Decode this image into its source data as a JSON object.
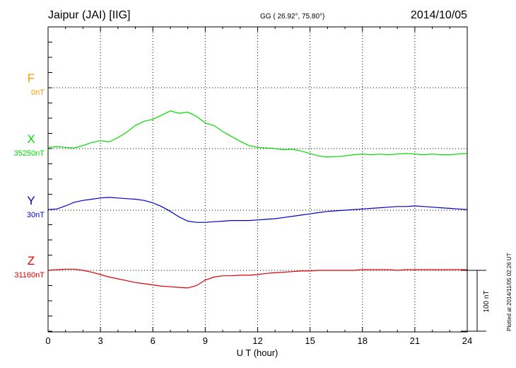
{
  "header": {
    "station": "Jaipur (JAI)  [IIG]",
    "coords": "GG ( 26.92°,  75.80°)",
    "date": "2014/10/05"
  },
  "plotted_note": "Plotted at 2014/11/05 02:26 UT",
  "chart_data": {
    "type": "line",
    "title": "",
    "xlabel": "U T (hour)",
    "ylabel": "",
    "xlim": [
      0,
      24
    ],
    "x_ticks": [
      0,
      3,
      6,
      9,
      12,
      15,
      18,
      21,
      24
    ],
    "grid": true,
    "scale_bar": {
      "label": "100 nT",
      "value_nT": 100
    },
    "series": [
      {
        "name": "F",
        "baseline_label": "0nT",
        "color": "#f0a000",
        "x": [],
        "y": []
      },
      {
        "name": "X",
        "baseline_label": "35250nT",
        "color": "#00dd00",
        "x": [
          0,
          0.5,
          1,
          1.5,
          2,
          2.5,
          3,
          3.5,
          4,
          4.5,
          5,
          5.5,
          6,
          6.5,
          7,
          7.5,
          8,
          8.5,
          9,
          9.5,
          10,
          10.5,
          11,
          11.5,
          12,
          12.5,
          13,
          13.5,
          14,
          14.5,
          15,
          15.5,
          16,
          16.5,
          17,
          17.5,
          18,
          18.5,
          19,
          19.5,
          20,
          20.5,
          21,
          21.5,
          22,
          22.5,
          23,
          23.5,
          24
        ],
        "y": [
          35252,
          35253,
          35252,
          35251,
          35255,
          35260,
          35263,
          35261,
          35268,
          35277,
          35288,
          35295,
          35298,
          35305,
          35312,
          35308,
          35310,
          35303,
          35292,
          35288,
          35278,
          35270,
          35262,
          35255,
          35252,
          35251,
          35250,
          35248,
          35249,
          35246,
          35242,
          35238,
          35236,
          35237,
          35238,
          35240,
          35241,
          35240,
          35241,
          35240,
          35241,
          35242,
          35241,
          35240,
          35241,
          35240,
          35240,
          35241,
          35242
        ]
      },
      {
        "name": "Y",
        "baseline_label": "30nT",
        "color": "#0000cc",
        "x": [
          0,
          0.5,
          1,
          1.5,
          2,
          2.5,
          3,
          3.5,
          4,
          4.5,
          5,
          5.5,
          6,
          6.5,
          7,
          7.5,
          8,
          8.5,
          9,
          9.5,
          10,
          10.5,
          11,
          11.5,
          12,
          12.5,
          13,
          13.5,
          14,
          14.5,
          15,
          15.5,
          16,
          16.5,
          17,
          17.5,
          18,
          18.5,
          19,
          19.5,
          20,
          20.5,
          21,
          21.5,
          22,
          22.5,
          23,
          23.5,
          24
        ],
        "y": [
          31,
          32,
          37,
          43,
          46,
          48,
          50,
          51,
          50,
          49,
          48,
          46,
          42,
          36,
          28,
          19,
          12,
          10,
          10,
          11,
          12,
          13,
          13,
          13,
          14,
          15,
          16,
          18,
          20,
          22,
          24,
          26,
          28,
          29,
          30,
          31,
          32,
          33,
          34,
          35,
          36,
          36,
          37,
          36,
          35,
          34,
          33,
          32,
          31
        ]
      },
      {
        "name": "Z",
        "baseline_label": "31160nT",
        "color": "#dd0000",
        "x": [
          0,
          0.5,
          1,
          1.5,
          2,
          2.5,
          3,
          3.5,
          4,
          4.5,
          5,
          5.5,
          6,
          6.5,
          7,
          7.5,
          8,
          8.5,
          9,
          9.5,
          10,
          10.5,
          11,
          11.5,
          12,
          12.5,
          13,
          13.5,
          14,
          14.5,
          15,
          15.5,
          16,
          16.5,
          17,
          17.5,
          18,
          18.5,
          19,
          19.5,
          20,
          20.5,
          21,
          21.5,
          22,
          22.5,
          23,
          23.5,
          24
        ],
        "y": [
          31160,
          31161,
          31162,
          31162,
          31160,
          31157,
          31153,
          31149,
          31146,
          31143,
          31140,
          31138,
          31136,
          31134,
          31133,
          31132,
          31131,
          31135,
          31144,
          31149,
          31151,
          31151,
          31152,
          31152,
          31153,
          31155,
          31156,
          31157,
          31158,
          31159,
          31159,
          31160,
          31160,
          31160,
          31160,
          31160,
          31161,
          31161,
          31161,
          31161,
          31160,
          31161,
          31161,
          31161,
          31161,
          31161,
          31161,
          31161,
          31161
        ]
      }
    ]
  }
}
